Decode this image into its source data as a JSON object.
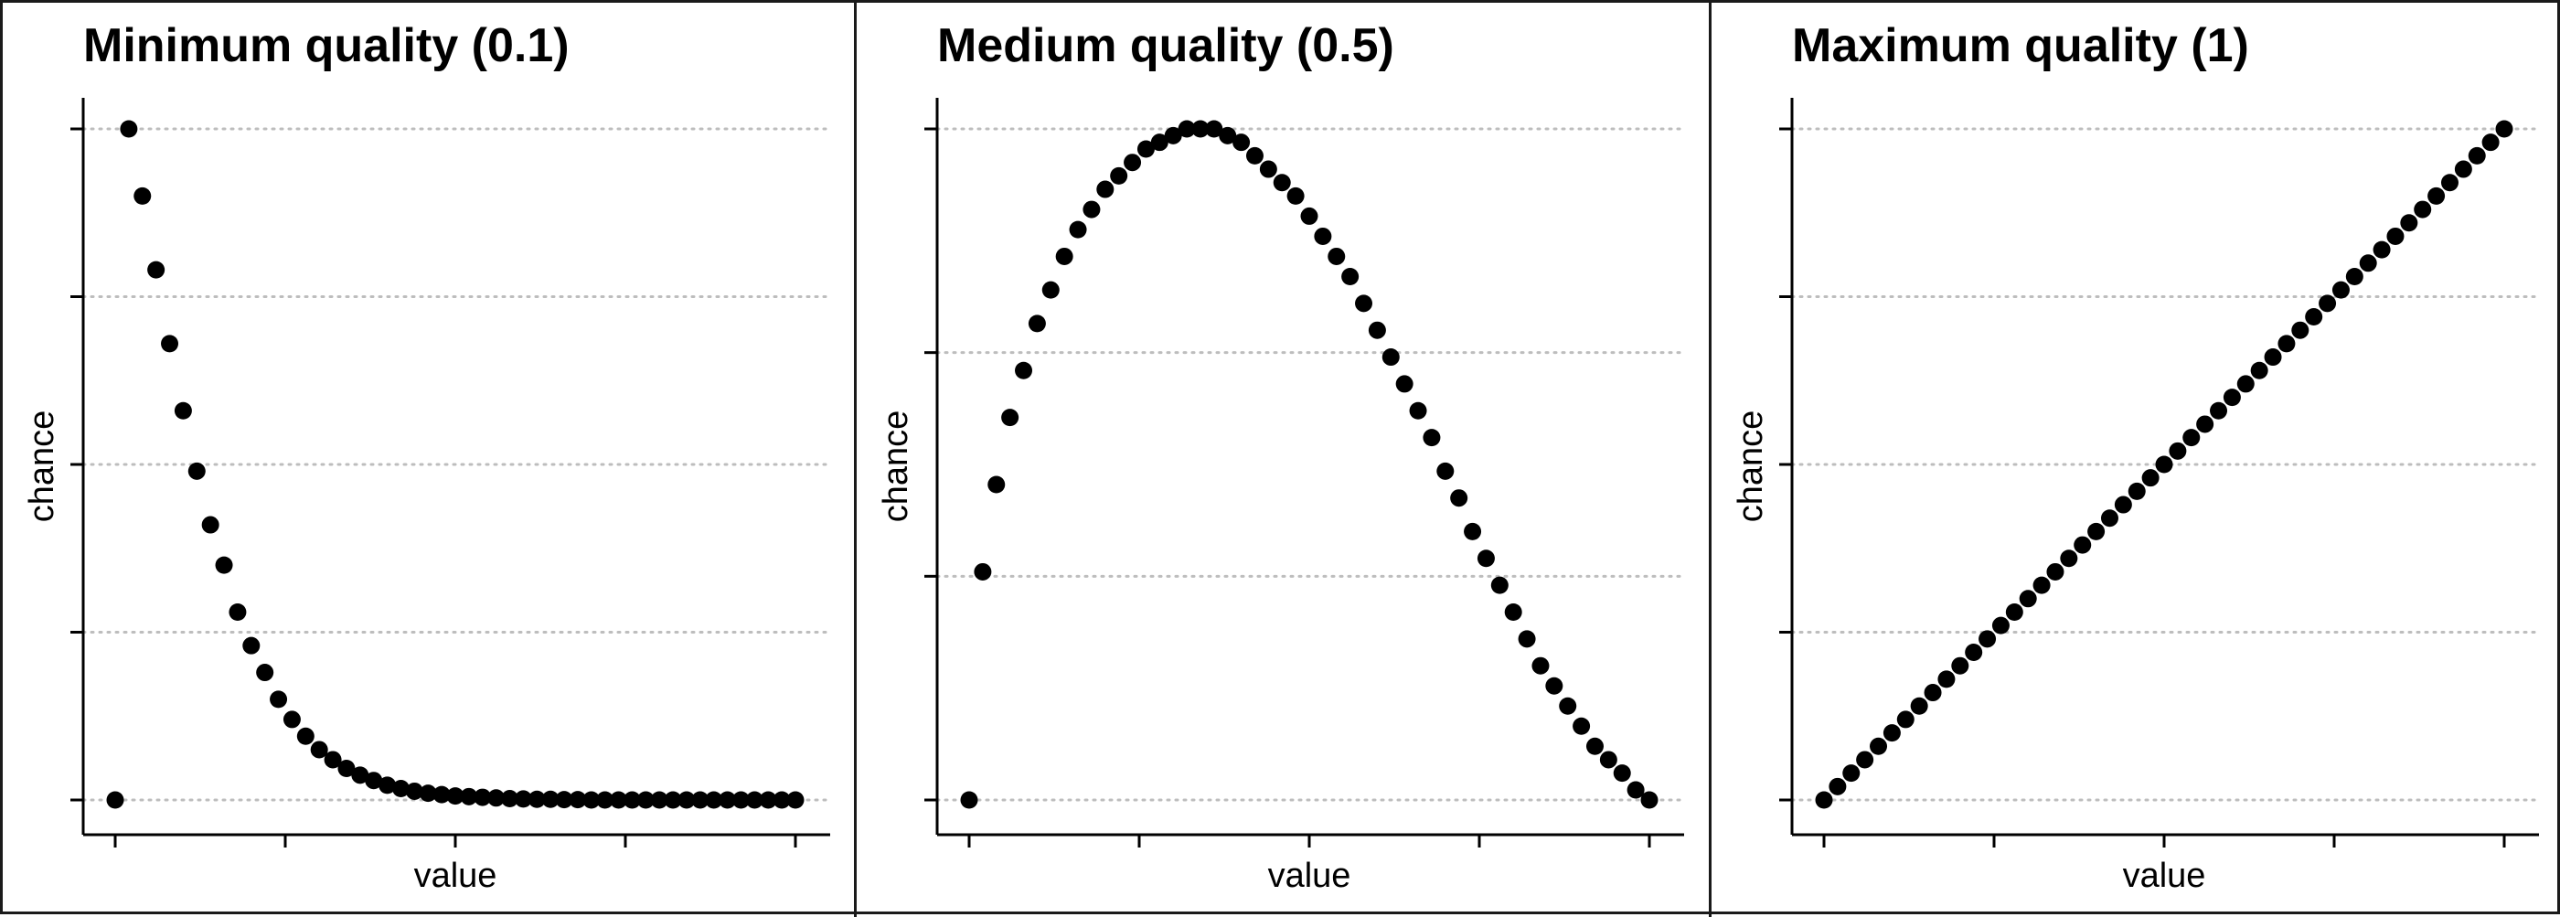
{
  "chart_data": [
    {
      "type": "scatter",
      "title": "Minimum quality (0.1)",
      "xlabel": "value",
      "ylabel": "chance",
      "xlim": [
        0,
        1
      ],
      "ylim": [
        0,
        1
      ],
      "y_grid_major": true,
      "x_tick_count": 5,
      "y_tick_count": 5,
      "x": [
        0,
        0.02,
        0.04,
        0.06,
        0.08,
        0.1,
        0.12,
        0.14,
        0.16,
        0.18,
        0.2,
        0.22,
        0.24,
        0.26,
        0.28,
        0.3,
        0.32,
        0.34,
        0.36,
        0.38,
        0.4,
        0.42,
        0.44,
        0.46,
        0.48,
        0.5,
        0.52,
        0.54,
        0.56,
        0.58,
        0.6,
        0.62,
        0.64,
        0.66,
        0.68,
        0.7,
        0.72,
        0.74,
        0.76,
        0.78,
        0.8,
        0.82,
        0.84,
        0.86,
        0.88,
        0.9,
        0.92,
        0.94,
        0.96,
        0.98,
        1
      ],
      "y": [
        0,
        1,
        0.9,
        0.79,
        0.68,
        0.58,
        0.49,
        0.41,
        0.35,
        0.28,
        0.23,
        0.19,
        0.15,
        0.12,
        0.095,
        0.075,
        0.06,
        0.047,
        0.037,
        0.029,
        0.022,
        0.017,
        0.013,
        0.01,
        0.008,
        0.006,
        0.005,
        0.004,
        0.003,
        0.002,
        0.0015,
        0.001,
        0.001,
        0.0005,
        0.0005,
        0,
        0,
        0,
        0,
        0,
        0,
        0,
        0,
        0,
        0,
        0,
        0,
        0,
        0,
        0,
        0
      ]
    },
    {
      "type": "scatter",
      "title": "Medium quality (0.5)",
      "xlabel": "value",
      "ylabel": "chance",
      "xlim": [
        0,
        1
      ],
      "ylim": [
        0,
        1
      ],
      "y_grid_major": true,
      "x_tick_count": 5,
      "y_tick_count": 4,
      "x": [
        0,
        0.02,
        0.04,
        0.06,
        0.08,
        0.1,
        0.12,
        0.14,
        0.16,
        0.18,
        0.2,
        0.22,
        0.24,
        0.26,
        0.28,
        0.3,
        0.32,
        0.34,
        0.36,
        0.38,
        0.4,
        0.42,
        0.44,
        0.46,
        0.48,
        0.5,
        0.52,
        0.54,
        0.56,
        0.58,
        0.6,
        0.62,
        0.64,
        0.66,
        0.68,
        0.7,
        0.72,
        0.74,
        0.76,
        0.78,
        0.8,
        0.82,
        0.84,
        0.86,
        0.88,
        0.9,
        0.92,
        0.94,
        0.96,
        0.98,
        1
      ],
      "y": [
        0,
        0.34,
        0.47,
        0.57,
        0.64,
        0.71,
        0.76,
        0.81,
        0.85,
        0.88,
        0.91,
        0.93,
        0.95,
        0.97,
        0.98,
        0.99,
        1,
        1,
        1,
        0.99,
        0.98,
        0.96,
        0.94,
        0.92,
        0.9,
        0.87,
        0.84,
        0.81,
        0.78,
        0.74,
        0.7,
        0.66,
        0.62,
        0.58,
        0.54,
        0.49,
        0.45,
        0.4,
        0.36,
        0.32,
        0.28,
        0.24,
        0.2,
        0.17,
        0.14,
        0.11,
        0.08,
        0.06,
        0.04,
        0.015,
        0
      ]
    },
    {
      "type": "scatter",
      "title": "Maximum quality (1)",
      "xlabel": "value",
      "ylabel": "chance",
      "xlim": [
        0,
        1
      ],
      "ylim": [
        0,
        1
      ],
      "y_grid_major": true,
      "x_tick_count": 5,
      "y_tick_count": 5,
      "x": [
        0,
        0.02,
        0.04,
        0.06,
        0.08,
        0.1,
        0.12,
        0.14,
        0.16,
        0.18,
        0.2,
        0.22,
        0.24,
        0.26,
        0.28,
        0.3,
        0.32,
        0.34,
        0.36,
        0.38,
        0.4,
        0.42,
        0.44,
        0.46,
        0.48,
        0.5,
        0.52,
        0.54,
        0.56,
        0.58,
        0.6,
        0.62,
        0.64,
        0.66,
        0.68,
        0.7,
        0.72,
        0.74,
        0.76,
        0.78,
        0.8,
        0.82,
        0.84,
        0.86,
        0.88,
        0.9,
        0.92,
        0.94,
        0.96,
        0.98,
        1
      ],
      "y": [
        0,
        0.02,
        0.04,
        0.06,
        0.08,
        0.1,
        0.12,
        0.14,
        0.16,
        0.18,
        0.2,
        0.22,
        0.24,
        0.26,
        0.28,
        0.3,
        0.32,
        0.34,
        0.36,
        0.38,
        0.4,
        0.42,
        0.44,
        0.46,
        0.48,
        0.5,
        0.52,
        0.54,
        0.56,
        0.58,
        0.6,
        0.62,
        0.64,
        0.66,
        0.68,
        0.7,
        0.72,
        0.74,
        0.76,
        0.78,
        0.8,
        0.82,
        0.84,
        0.86,
        0.88,
        0.9,
        0.92,
        0.94,
        0.96,
        0.98,
        1
      ]
    }
  ],
  "colors": {
    "points": "#000000",
    "grid": "#bdbdbd",
    "axis": "#000000",
    "border": "#1a1a1a"
  }
}
